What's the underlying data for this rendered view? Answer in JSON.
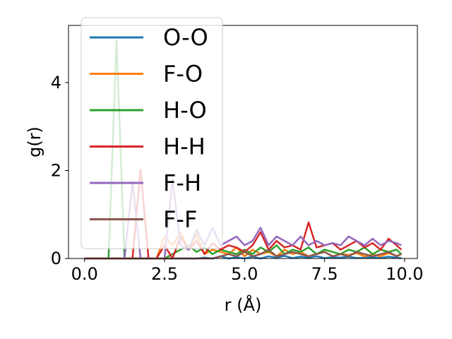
{
  "chart_data": {
    "type": "line",
    "title": "",
    "xlabel": "r (Å)",
    "ylabel": "g(r)",
    "xlim": [
      -0.5,
      10.4
    ],
    "ylim": [
      0,
      5.3
    ],
    "xticks": [
      0.0,
      2.5,
      5.0,
      7.5,
      10.0
    ],
    "xtick_labels": [
      "0.0",
      "2.5",
      "5.0",
      "7.5",
      "10.0"
    ],
    "yticks": [
      0,
      2,
      4
    ],
    "ytick_labels": [
      "0",
      "2",
      "4"
    ],
    "grid": false,
    "legend_position": "top-left",
    "x": [
      0.0,
      0.25,
      0.5,
      0.75,
      1.0,
      1.25,
      1.5,
      1.75,
      2.0,
      2.25,
      2.5,
      2.75,
      3.0,
      3.25,
      3.5,
      3.75,
      4.0,
      4.25,
      4.5,
      4.75,
      5.0,
      5.25,
      5.5,
      5.75,
      6.0,
      6.25,
      6.5,
      6.75,
      7.0,
      7.25,
      7.5,
      7.75,
      8.0,
      8.25,
      8.5,
      8.75,
      9.0,
      9.25,
      9.5,
      9.75,
      9.9
    ],
    "series": [
      {
        "name": "O-O",
        "color": "#1f77b4",
        "values": [
          0,
          0,
          0,
          0,
          0,
          0,
          0,
          0,
          0,
          0,
          0,
          0,
          0,
          0,
          0,
          0.02,
          0,
          0.05,
          0,
          0.03,
          0,
          0.04,
          0,
          0.05,
          0.02,
          0.06,
          0.01,
          0.04,
          0.02,
          0.05,
          0.01,
          0.03,
          0.02,
          0.04,
          0.01,
          0.02,
          0.03,
          0.01,
          0.04,
          0.02,
          0.01
        ]
      },
      {
        "name": "F-O",
        "color": "#ff7f0e",
        "values": [
          0,
          0,
          0,
          0,
          0,
          0,
          0,
          0,
          0,
          0,
          0.5,
          0.3,
          0.6,
          0.2,
          0.55,
          0.1,
          0.2,
          0.15,
          0.1,
          0.25,
          0.05,
          0.2,
          0.1,
          0.15,
          0.05,
          0.2,
          0.1,
          0.15,
          0.05,
          0.1,
          0.15,
          0.05,
          0.1,
          0.08,
          0.12,
          0.05,
          0.1,
          0.05,
          0.12,
          0.06,
          0.1
        ]
      },
      {
        "name": "H-O",
        "color": "#2ca02c",
        "values": [
          0,
          0,
          0,
          0,
          4.95,
          0,
          0,
          0,
          0,
          0,
          0,
          0.1,
          0.2,
          0.3,
          0.15,
          0.25,
          0.1,
          0.2,
          0.15,
          0.1,
          0.2,
          0.1,
          0.25,
          0.15,
          0.3,
          0.1,
          0.2,
          0.15,
          0.25,
          0.1,
          0.2,
          0.15,
          0.1,
          0.2,
          0.15,
          0.25,
          0.1,
          0.2,
          0.15,
          0.2,
          0.1
        ]
      },
      {
        "name": "H-H",
        "color": "#d62728",
        "values": [
          0,
          0,
          0,
          0,
          0,
          0,
          0,
          2.02,
          0,
          0,
          0.3,
          0,
          0.5,
          0.2,
          0.4,
          0.1,
          0.35,
          0.2,
          0.3,
          0.25,
          0.15,
          0.3,
          0.6,
          0.2,
          0.4,
          0.25,
          0.3,
          0.2,
          0.82,
          0.25,
          0.3,
          0.35,
          0.2,
          0.3,
          0.4,
          0.25,
          0.35,
          0.2,
          0.45,
          0.3,
          0.2
        ]
      },
      {
        "name": "F-H",
        "color": "#9467bd",
        "values": [
          0,
          0,
          0,
          0,
          0,
          0,
          1.75,
          0,
          0,
          0,
          0,
          1.8,
          0.3,
          0.2,
          0.65,
          0.3,
          0.7,
          0.3,
          0.4,
          0.5,
          0.3,
          0.4,
          0.7,
          0.3,
          0.5,
          0.4,
          0.3,
          0.5,
          0.3,
          0.4,
          0.3,
          0.35,
          0.3,
          0.5,
          0.4,
          0.3,
          0.45,
          0.3,
          0.4,
          0.35,
          0.3
        ]
      },
      {
        "name": "F-F",
        "color": "#8c564b",
        "values": [
          0,
          0,
          0,
          0,
          0,
          0,
          0,
          0,
          0,
          0,
          0,
          0,
          0,
          0,
          0,
          0,
          0,
          0.05,
          0.1,
          0.05,
          0.15,
          0.05,
          0.1,
          0.2,
          0.05,
          0.1,
          0.15,
          0.1,
          0.05,
          0.1,
          0.15,
          0.05,
          0.1,
          0.05,
          0.15,
          0.1,
          0.05,
          0.1,
          0.15,
          0.05,
          0.1
        ]
      }
    ]
  }
}
